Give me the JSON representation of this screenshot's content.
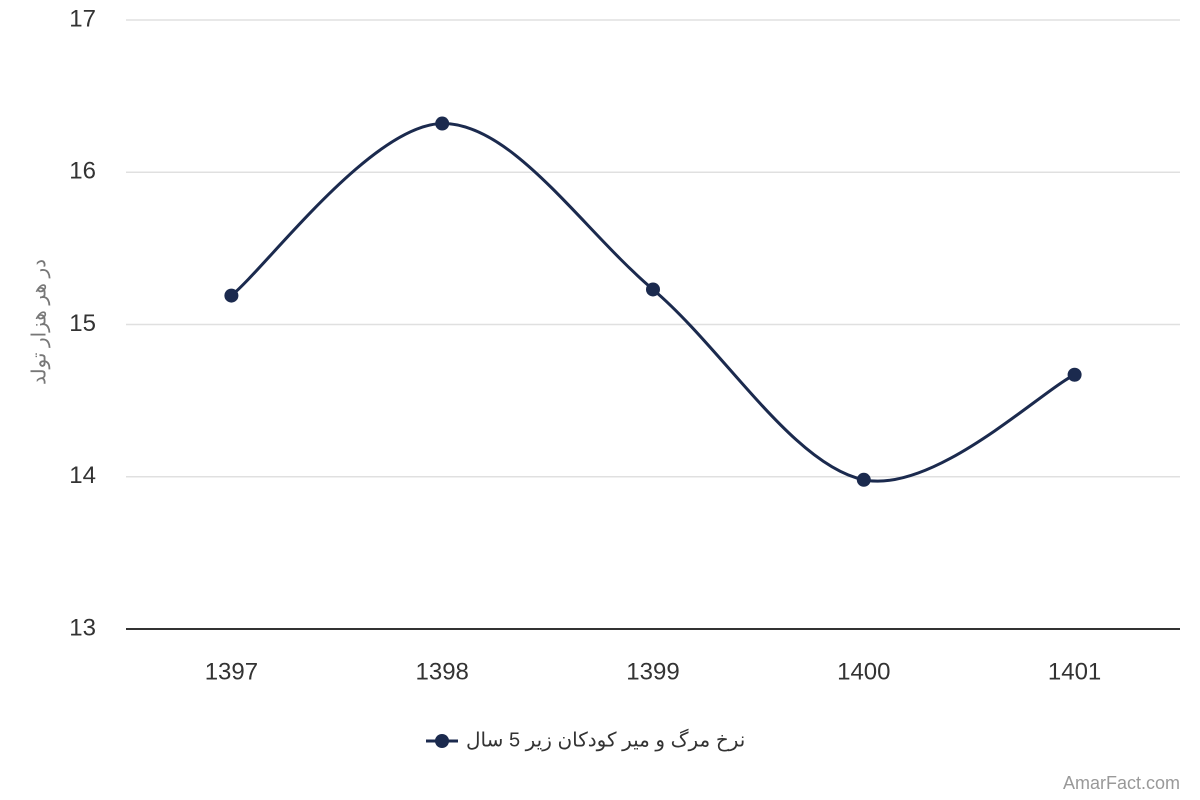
{
  "chart_data": {
    "type": "line",
    "y_label": "در هر هزار تولد",
    "categories": [
      "1397",
      "1398",
      "1399",
      "1400",
      "1401"
    ],
    "series": [
      {
        "name": "نرخ مرگ و میر کودکان زیر 5 سال",
        "color": "#1b2a4e",
        "values": [
          15.19,
          16.32,
          15.23,
          13.98,
          14.67
        ]
      }
    ],
    "ylim": [
      13,
      17
    ],
    "yticks": [
      13,
      14,
      15,
      16,
      17
    ],
    "grid": true,
    "smooth": true,
    "legend": "bottom"
  },
  "watermark": "AmarFact.com"
}
